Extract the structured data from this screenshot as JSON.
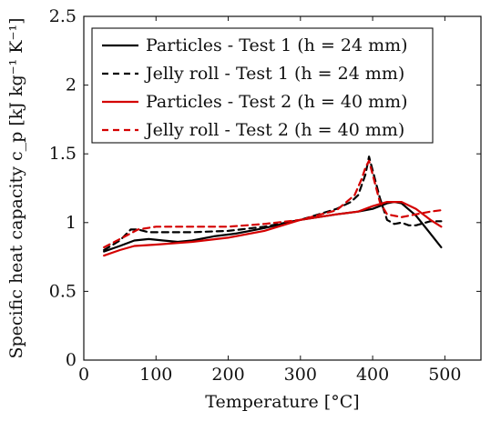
{
  "chart_data": {
    "type": "line",
    "xlabel": "Temperature [°C]",
    "ylabel": "Specific heat capacity c_p [kJ kg⁻¹ K⁻¹]",
    "xlim": [
      0,
      550
    ],
    "ylim": [
      0,
      2.5
    ],
    "xticks": [
      0,
      100,
      200,
      300,
      400,
      500
    ],
    "yticks": [
      0,
      0.5,
      1,
      1.5,
      2,
      2.5
    ],
    "xtick_labels": [
      "0",
      "100",
      "200",
      "300",
      "400",
      "500"
    ],
    "ytick_labels": [
      "0",
      "0.5",
      "1",
      "1.5",
      "2",
      "2.5"
    ],
    "grid": false,
    "legend_position": "top",
    "series": [
      {
        "name": "Particles - Test 1 (h = 24 mm)",
        "color": "#000000",
        "dash": "solid",
        "x": [
          28,
          50,
          70,
          90,
          110,
          130,
          150,
          180,
          210,
          230,
          250,
          300,
          350,
          380,
          400,
          420,
          430,
          440,
          460,
          480,
          495
        ],
        "y": [
          0.79,
          0.83,
          0.87,
          0.88,
          0.87,
          0.86,
          0.87,
          0.9,
          0.92,
          0.94,
          0.96,
          1.02,
          1.06,
          1.08,
          1.1,
          1.14,
          1.15,
          1.14,
          1.05,
          0.92,
          0.82
        ]
      },
      {
        "name": "Jelly roll - Test 1 (h = 24 mm)",
        "color": "#000000",
        "dash": "dashed",
        "x": [
          28,
          50,
          65,
          75,
          90,
          110,
          150,
          200,
          250,
          300,
          350,
          370,
          380,
          390,
          395,
          400,
          410,
          420,
          430,
          440,
          450,
          460,
          480,
          495
        ],
        "y": [
          0.8,
          0.87,
          0.95,
          0.95,
          0.93,
          0.93,
          0.93,
          0.94,
          0.97,
          1.02,
          1.1,
          1.15,
          1.2,
          1.35,
          1.48,
          1.38,
          1.18,
          1.02,
          0.99,
          1.0,
          0.98,
          0.98,
          1.01,
          1.01
        ]
      },
      {
        "name": "Particles - Test 2 (h = 40 mm)",
        "color": "#d40000",
        "dash": "solid",
        "x": [
          28,
          50,
          70,
          100,
          150,
          200,
          250,
          300,
          350,
          380,
          400,
          420,
          440,
          460,
          480,
          495
        ],
        "y": [
          0.76,
          0.8,
          0.83,
          0.84,
          0.86,
          0.89,
          0.94,
          1.02,
          1.06,
          1.08,
          1.12,
          1.15,
          1.15,
          1.1,
          1.02,
          0.97
        ]
      },
      {
        "name": "Jelly roll - Test 2 (h = 40 mm)",
        "color": "#d40000",
        "dash": "dashed",
        "x": [
          28,
          50,
          75,
          100,
          150,
          200,
          250,
          300,
          350,
          375,
          385,
          390,
          395,
          400,
          410,
          420,
          440,
          460,
          480,
          495
        ],
        "y": [
          0.82,
          0.88,
          0.95,
          0.97,
          0.97,
          0.97,
          0.99,
          1.02,
          1.09,
          1.2,
          1.32,
          1.4,
          1.45,
          1.35,
          1.15,
          1.06,
          1.04,
          1.06,
          1.08,
          1.09
        ]
      }
    ]
  }
}
